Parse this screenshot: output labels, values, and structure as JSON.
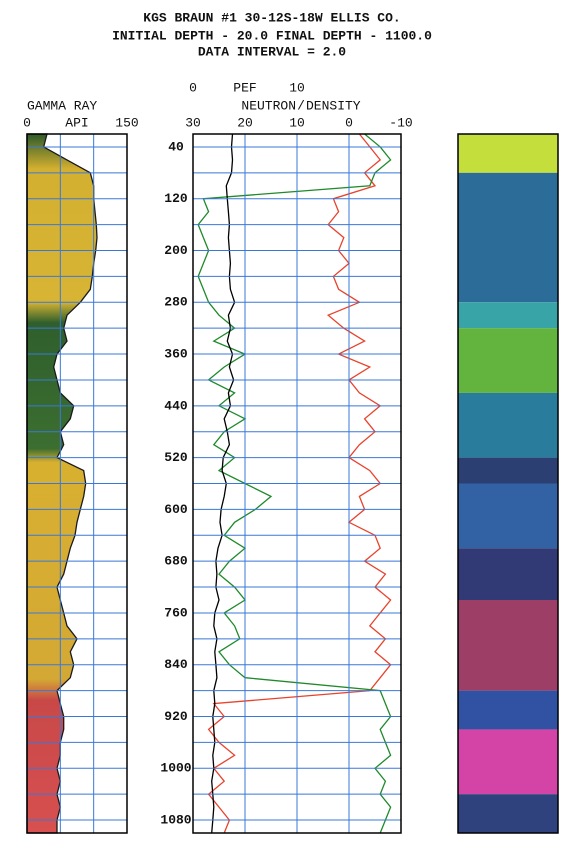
{
  "chart_data": {
    "type": "well-log",
    "title": "KGS  BRAUN #1  30-12S-18W  ELLIS CO.",
    "subtitle": [
      "INITIAL DEPTH -   20.0  FINAL DEPTH - 1100.0",
      "DATA INTERVAL = 2.0"
    ],
    "ylim": [
      20,
      1100
    ],
    "yticks": [
      40,
      120,
      200,
      280,
      360,
      440,
      520,
      600,
      680,
      760,
      840,
      920,
      1000,
      1080
    ],
    "ygrid": [
      40,
      80,
      120,
      160,
      200,
      240,
      280,
      320,
      360,
      400,
      440,
      480,
      520,
      560,
      600,
      640,
      680,
      720,
      760,
      800,
      840,
      880,
      920,
      960,
      1000,
      1040,
      1080
    ],
    "grid_color": "#3a78d8",
    "depths": [
      20,
      40,
      60,
      80,
      100,
      120,
      140,
      160,
      180,
      200,
      220,
      240,
      260,
      280,
      300,
      320,
      340,
      360,
      380,
      400,
      420,
      440,
      460,
      480,
      500,
      520,
      540,
      560,
      580,
      600,
      620,
      640,
      660,
      680,
      700,
      720,
      740,
      760,
      780,
      800,
      820,
      840,
      860,
      880,
      900,
      920,
      940,
      960,
      980,
      1000,
      1020,
      1040,
      1060,
      1080,
      1100
    ],
    "tracks": [
      {
        "name": "GAMMA RAY",
        "unit": "API",
        "xlim": [
          0,
          150
        ],
        "xticks": [
          0,
          150
        ],
        "xgrid": [
          50,
          100
        ],
        "series": [
          {
            "color": "#1a1a1a",
            "fill": true,
            "values": [
              30,
              25,
              60,
              95,
              100,
              100,
              102,
              104,
              105,
              103,
              100,
              98,
              95,
              80,
              60,
              55,
              60,
              45,
              40,
              45,
              50,
              70,
              65,
              50,
              55,
              45,
              85,
              88,
              85,
              80,
              75,
              72,
              65,
              60,
              55,
              45,
              50,
              55,
              60,
              75,
              65,
              70,
              65,
              45,
              50,
              55,
              55,
              50,
              50,
              45,
              50,
              45,
              50,
              45,
              45
            ]
          }
        ]
      },
      {
        "xlim": [
          30,
          -10
        ],
        "xticks": [
          30,
          20,
          10,
          0,
          -10
        ],
        "xgrid": [
          20,
          10,
          0
        ],
        "x2lim": [
          0,
          20
        ],
        "x2ticks": [
          0,
          10
        ],
        "name_separator": "/",
        "series": [
          {
            "name": "NEUTRON",
            "color": "#e8432c",
            "values": [
              -2,
              -4,
              -6,
              -3,
              -5,
              3,
              2,
              4,
              1,
              2,
              0,
              3,
              2,
              -2,
              4,
              1,
              -3,
              2,
              -4,
              0,
              -2,
              -6,
              -3,
              -5,
              -2,
              0,
              -4,
              -6,
              -2,
              -3,
              0,
              -5,
              -6,
              -3,
              -7,
              -5,
              -8,
              -6,
              -4,
              -7,
              -5,
              -8,
              -6,
              -4,
              26,
              24,
              27,
              25,
              22,
              26,
              24,
              27,
              25,
              23,
              24
            ]
          },
          {
            "name": "DENSITY",
            "color": "#1f8a2a",
            "values": [
              -3,
              -6,
              -8,
              -5,
              -4,
              28,
              27,
              29,
              28,
              27,
              28,
              29,
              28,
              27,
              25,
              22,
              26,
              20,
              24,
              27,
              22,
              25,
              20,
              24,
              26,
              22,
              25,
              20,
              15,
              18,
              22,
              24,
              20,
              23,
              25,
              22,
              20,
              24,
              22,
              21,
              25,
              23,
              20,
              -6,
              -7,
              -8,
              -6,
              -7,
              -8,
              -5,
              -7,
              -6,
              -8,
              -7,
              -6
            ]
          },
          {
            "name": "PEF",
            "color": "#000000",
            "axis": "x2",
            "values": [
              3.8,
              3.7,
              3.8,
              3.7,
              3.2,
              3.3,
              3.4,
              3.5,
              3.4,
              3.5,
              3.6,
              3.5,
              3.6,
              4.0,
              3.4,
              3.6,
              3.3,
              3.8,
              3.5,
              3.9,
              3.4,
              3.6,
              3.0,
              3.3,
              3.5,
              2.9,
              2.8,
              3.2,
              3.0,
              2.7,
              2.6,
              2.8,
              2.4,
              2.2,
              2.3,
              2.2,
              2.5,
              2.1,
              2.0,
              2.3,
              2.1,
              2.2,
              2.3,
              2.0,
              2.1,
              1.9,
              2.0,
              2.1,
              1.9,
              2.0,
              1.8,
              1.9,
              2.0,
              1.9,
              1.8
            ]
          }
        ]
      }
    ],
    "strip": [
      {
        "top": 20,
        "bottom": 80,
        "color": "#c4de3c"
      },
      {
        "top": 80,
        "bottom": 280,
        "color": "#2b6c98"
      },
      {
        "top": 280,
        "bottom": 320,
        "color": "#38a4a8"
      },
      {
        "top": 320,
        "bottom": 420,
        "color": "#62b43e"
      },
      {
        "top": 420,
        "bottom": 520,
        "color": "#2a7c9c"
      },
      {
        "top": 520,
        "bottom": 560,
        "color": "#2c3f72"
      },
      {
        "top": 560,
        "bottom": 660,
        "color": "#3262a4"
      },
      {
        "top": 660,
        "bottom": 740,
        "color": "#313a74"
      },
      {
        "top": 740,
        "bottom": 880,
        "color": "#9c3e66"
      },
      {
        "top": 880,
        "bottom": 940,
        "color": "#3152a2"
      },
      {
        "top": 940,
        "bottom": 1040,
        "color": "#d443a6"
      },
      {
        "top": 1040,
        "bottom": 1100,
        "color": "#30427e"
      }
    ]
  }
}
